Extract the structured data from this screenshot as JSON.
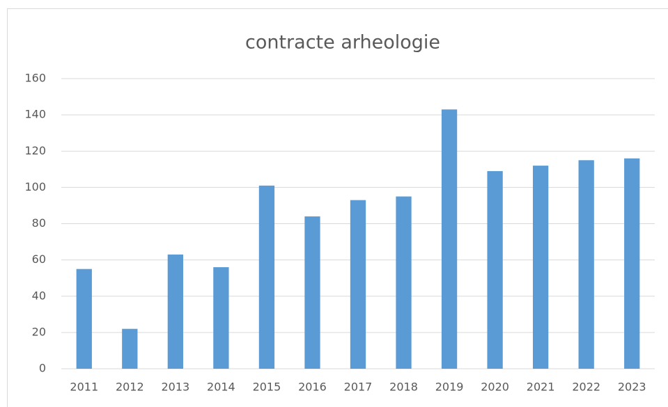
{
  "chart_data": {
    "type": "bar",
    "title": "contracte arheologie",
    "categories": [
      "2011",
      "2012",
      "2013",
      "2014",
      "2015",
      "2016",
      "2017",
      "2018",
      "2019",
      "2020",
      "2021",
      "2022",
      "2023"
    ],
    "values": [
      55,
      22,
      63,
      56,
      101,
      84,
      93,
      95,
      143,
      109,
      112,
      115,
      116
    ],
    "color": "#5b9bd5",
    "ylim": [
      0,
      160
    ],
    "yticks": [
      0,
      20,
      40,
      60,
      80,
      100,
      120,
      140,
      160
    ],
    "grid": true
  }
}
